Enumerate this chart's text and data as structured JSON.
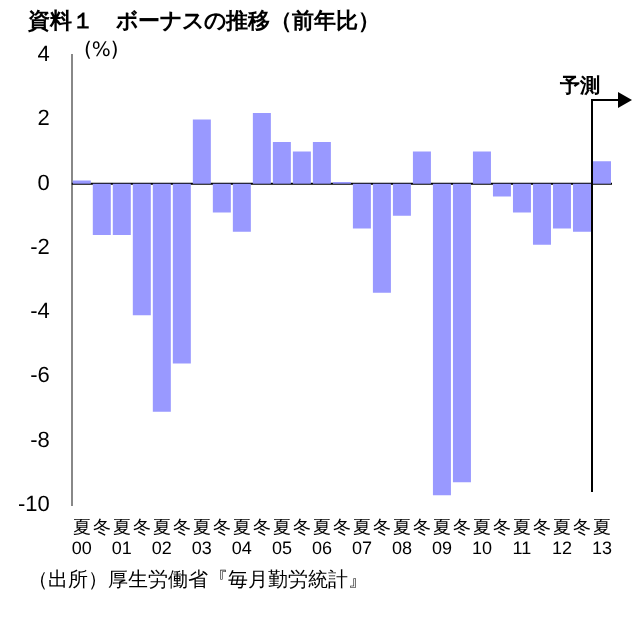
{
  "chart_data": {
    "type": "bar",
    "title": "資料１　ボーナスの推移（前年比）",
    "ylabel": "(%)",
    "categories": [
      "夏\n00",
      "冬",
      "夏\n01",
      "冬",
      "夏\n02",
      "冬",
      "夏\n03",
      "冬",
      "夏\n04",
      "冬",
      "夏\n05",
      "冬",
      "夏\n06",
      "冬",
      "夏\n07",
      "冬",
      "夏\n08",
      "冬",
      "夏\n09",
      "冬",
      "夏\n10",
      "冬",
      "夏\n11",
      "冬",
      "夏\n12",
      "冬",
      "夏\n13"
    ],
    "values": [
      0.1,
      -1.6,
      -1.6,
      -4.1,
      -7.1,
      -5.6,
      2.0,
      -0.9,
      -1.5,
      2.2,
      1.3,
      1.0,
      1.3,
      0.05,
      -1.4,
      -3.4,
      -1.0,
      1.0,
      -9.7,
      -9.3,
      1.0,
      -0.4,
      -0.9,
      -1.9,
      -1.4,
      -1.5,
      0.7
    ],
    "color": "#9999ff",
    "ylim": [
      -10,
      4
    ],
    "yticks": [
      -10,
      -8,
      -6,
      -4,
      -2,
      0,
      2,
      4
    ],
    "legend": false,
    "annotations": [
      "予測",
      "（出所）厚生労働省『毎月勤労統計』"
    ]
  }
}
